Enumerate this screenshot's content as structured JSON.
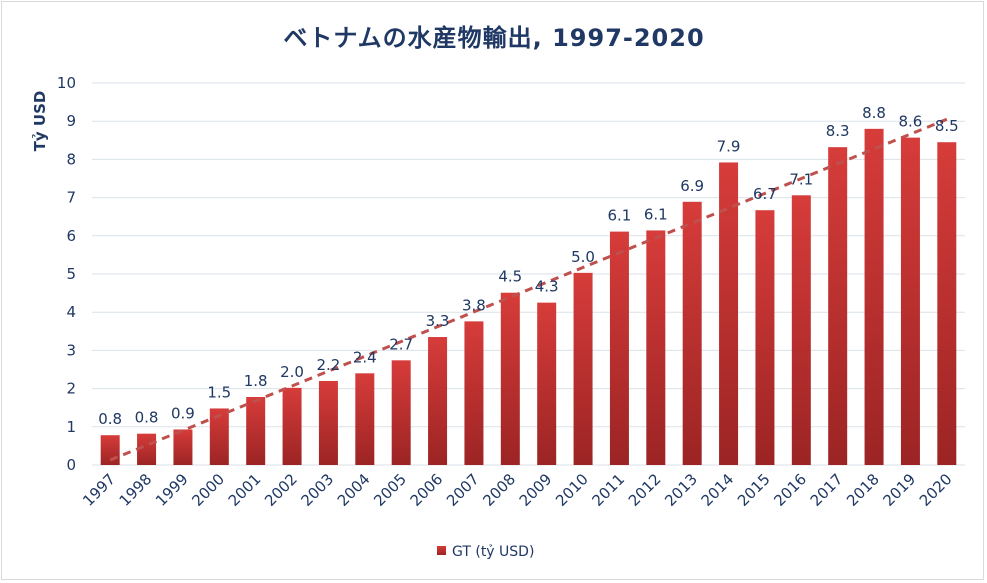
{
  "chart_data": {
    "type": "bar",
    "title": "ベトナムの水産物輸出, 1997-2020",
    "ylabel": "Tỷ USD",
    "xlabel": "",
    "ylim": [
      0,
      10
    ],
    "yticks": [
      0,
      1,
      2,
      3,
      4,
      5,
      6,
      7,
      8,
      9,
      10
    ],
    "grid": true,
    "legend_position": "bottom",
    "categories": [
      "1997",
      "1998",
      "1999",
      "2000",
      "2001",
      "2002",
      "2003",
      "2004",
      "2005",
      "2006",
      "2007",
      "2008",
      "2009",
      "2010",
      "2011",
      "2012",
      "2013",
      "2014",
      "2015",
      "2016",
      "2017",
      "2018",
      "2019",
      "2020"
    ],
    "series": [
      {
        "name": "GT (tỷ USD)",
        "color": "#c0302f",
        "values": [
          0.78,
          0.82,
          0.93,
          1.48,
          1.78,
          2.02,
          2.2,
          2.4,
          2.74,
          3.35,
          3.76,
          4.51,
          4.25,
          5.03,
          6.11,
          6.14,
          6.89,
          7.92,
          6.67,
          7.06,
          8.32,
          8.8,
          8.57,
          8.45
        ],
        "labels": [
          "0.8",
          "0.8",
          "0.9",
          "1.5",
          "1.8",
          "2.0",
          "2.2",
          "2.4",
          "2.7",
          "3.3",
          "3.8",
          "4.5",
          "4.3",
          "5.0",
          "6.1",
          "6.1",
          "6.9",
          "7.9",
          "6.7",
          "7.1",
          "8.3",
          "8.8",
          "8.6",
          "8.5"
        ]
      }
    ],
    "trendline": {
      "type": "linear",
      "style": "dashed",
      "color": "#c0504d",
      "start": 0.13,
      "end": 9.05
    }
  }
}
